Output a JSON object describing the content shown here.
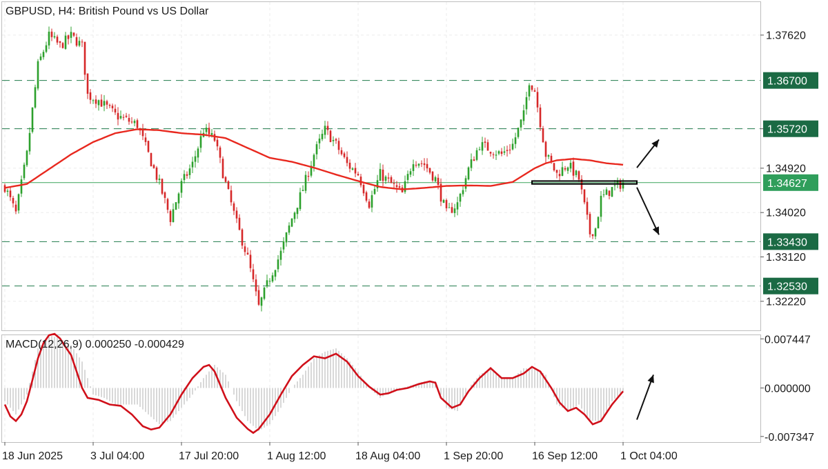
{
  "chart_data": [
    {
      "type": "candlestick",
      "title": "GBPUSD, H4:  British Pound vs US Dollar",
      "ylim": [
        1.3163,
        1.3829
      ],
      "y_ticks": [
        "1.37620",
        "1.35720",
        "1.34920",
        "1.34020",
        "1.33120",
        "1.32220"
      ],
      "x_ticks": [
        "18 Jun 2025",
        "3 Jul 04:00",
        "17 Jul 20:00",
        "1 Aug 12:00",
        "18 Aug 04:00",
        "1 Sep 20:00",
        "16 Sep 12:00",
        "1 Oct 04:00"
      ],
      "x_tick_index": [
        0,
        32,
        64,
        96,
        128,
        160,
        192,
        224
      ],
      "candle_count": 225,
      "bull_color": "#2ca02c",
      "bear_color": "#d62728",
      "ma_color": "#e8281e",
      "close_path": [
        [
          0,
          1.3455
        ],
        [
          4,
          1.34
        ],
        [
          8,
          1.352
        ],
        [
          12,
          1.37
        ],
        [
          16,
          1.376
        ],
        [
          20,
          1.374
        ],
        [
          24,
          1.376
        ],
        [
          28,
          1.374
        ],
        [
          30,
          1.364
        ],
        [
          34,
          1.363
        ],
        [
          40,
          1.36
        ],
        [
          44,
          1.359
        ],
        [
          48,
          1.358
        ],
        [
          52,
          1.352
        ],
        [
          56,
          1.346
        ],
        [
          60,
          1.339
        ],
        [
          64,
          1.346
        ],
        [
          68,
          1.35
        ],
        [
          72,
          1.357
        ],
        [
          76,
          1.355
        ],
        [
          80,
          1.346
        ],
        [
          84,
          1.338
        ],
        [
          88,
          1.331
        ],
        [
          92,
          1.321
        ],
        [
          96,
          1.327
        ],
        [
          100,
          1.332
        ],
        [
          104,
          1.339
        ],
        [
          108,
          1.345
        ],
        [
          112,
          1.352
        ],
        [
          116,
          1.357
        ],
        [
          120,
          1.354
        ],
        [
          124,
          1.35
        ],
        [
          128,
          1.348
        ],
        [
          132,
          1.342
        ],
        [
          136,
          1.348
        ],
        [
          140,
          1.346
        ],
        [
          144,
          1.344
        ],
        [
          148,
          1.351
        ],
        [
          152,
          1.35
        ],
        [
          156,
          1.347
        ],
        [
          160,
          1.34
        ],
        [
          164,
          1.342
        ],
        [
          168,
          1.349
        ],
        [
          172,
          1.354
        ],
        [
          176,
          1.353
        ],
        [
          180,
          1.352
        ],
        [
          184,
          1.354
        ],
        [
          188,
          1.36
        ],
        [
          190,
          1.367
        ],
        [
          192,
          1.365
        ],
        [
          196,
          1.352
        ],
        [
          200,
          1.348
        ],
        [
          204,
          1.35
        ],
        [
          208,
          1.347
        ],
        [
          212,
          1.336
        ],
        [
          214,
          1.337
        ],
        [
          216,
          1.343
        ],
        [
          220,
          1.345
        ],
        [
          224,
          1.3463
        ]
      ],
      "ma_path": [
        [
          0,
          1.3452
        ],
        [
          8,
          1.346
        ],
        [
          16,
          1.349
        ],
        [
          24,
          1.352
        ],
        [
          32,
          1.3545
        ],
        [
          40,
          1.3563
        ],
        [
          48,
          1.3571
        ],
        [
          56,
          1.3569
        ],
        [
          64,
          1.3563
        ],
        [
          72,
          1.356
        ],
        [
          80,
          1.3553
        ],
        [
          88,
          1.3533
        ],
        [
          96,
          1.3513
        ],
        [
          104,
          1.3505
        ],
        [
          112,
          1.3493
        ],
        [
          120,
          1.3479
        ],
        [
          128,
          1.3466
        ],
        [
          136,
          1.3454
        ],
        [
          144,
          1.3449
        ],
        [
          152,
          1.3452
        ],
        [
          160,
          1.3456
        ],
        [
          168,
          1.3457
        ],
        [
          176,
          1.3456
        ],
        [
          184,
          1.3464
        ],
        [
          188,
          1.3478
        ],
        [
          192,
          1.3492
        ],
        [
          196,
          1.3502
        ],
        [
          200,
          1.3508
        ],
        [
          206,
          1.3511
        ],
        [
          212,
          1.3508
        ],
        [
          218,
          1.3502
        ],
        [
          224,
          1.3499
        ]
      ],
      "last_price": 1.34627,
      "horizontal_levels": [
        {
          "value": 1.367,
          "label": "1.36700",
          "style": "dashed",
          "color": "#1f7a4a"
        },
        {
          "value": 1.3572,
          "label": "1.35720",
          "style": "dashed",
          "color": "#1f7a4a"
        },
        {
          "value": 1.3343,
          "label": "1.33430",
          "style": "dashed",
          "color": "#1f7a4a"
        },
        {
          "value": 1.3253,
          "label": "1.32530",
          "style": "dashed",
          "color": "#1f7a4a"
        }
      ],
      "last_price_label": "1.34627",
      "label_bg_light": "#2f9e5b",
      "label_bg_dark": "#1b6a44",
      "annotations": {
        "zone": {
          "x_start": 191,
          "x_end": 229,
          "y_low": 1.346,
          "y_high": 1.3466
        },
        "arrow_up": {
          "from": [
            229,
            1.3493
          ],
          "to": [
            237,
            1.355
          ]
        },
        "arrow_down": {
          "from": [
            229,
            1.3453
          ],
          "to": [
            237,
            1.3357
          ]
        }
      }
    },
    {
      "type": "macd",
      "title": "MACD(12,26,9) 0.000250 -0.000429",
      "ylim": [
        -0.0082,
        0.008
      ],
      "y_ticks": [
        "0.007447",
        "0.000000",
        "-0.007347"
      ],
      "y_tick_values": [
        0.007447,
        0.0,
        -0.007347
      ],
      "histogram_color": "#b0b0b0",
      "signal_color": "#d0101a",
      "macd_path": [
        [
          0,
          -0.002
        ],
        [
          4,
          -0.004
        ],
        [
          8,
          -0.001
        ],
        [
          12,
          0.006
        ],
        [
          16,
          0.008
        ],
        [
          20,
          0.0075
        ],
        [
          24,
          0.0065
        ],
        [
          28,
          0.004
        ],
        [
          32,
          -0.001
        ],
        [
          36,
          -0.0015
        ],
        [
          40,
          -0.0025
        ],
        [
          44,
          -0.0025
        ],
        [
          48,
          -0.0025
        ],
        [
          52,
          -0.004
        ],
        [
          56,
          -0.0055
        ],
        [
          60,
          -0.005
        ],
        [
          64,
          -0.003
        ],
        [
          68,
          -0.001
        ],
        [
          72,
          0.0015
        ],
        [
          76,
          0.0035
        ],
        [
          80,
          0.002
        ],
        [
          84,
          -0.002
        ],
        [
          88,
          -0.005
        ],
        [
          92,
          -0.0065
        ],
        [
          96,
          -0.0055
        ],
        [
          100,
          -0.003
        ],
        [
          104,
          0.0
        ],
        [
          108,
          0.002
        ],
        [
          112,
          0.0045
        ],
        [
          116,
          0.0055
        ],
        [
          120,
          0.006
        ],
        [
          124,
          0.0045
        ],
        [
          128,
          0.0025
        ],
        [
          132,
          0.0
        ],
        [
          136,
          -0.0015
        ],
        [
          140,
          -0.0005
        ],
        [
          144,
          0.0
        ],
        [
          148,
          0.0005
        ],
        [
          152,
          0.001
        ],
        [
          156,
          0.001
        ],
        [
          160,
          -0.003
        ],
        [
          164,
          -0.0035
        ],
        [
          168,
          0.0
        ],
        [
          172,
          0.002
        ],
        [
          176,
          0.003
        ],
        [
          180,
          0.0015
        ],
        [
          184,
          0.0015
        ],
        [
          188,
          0.003
        ],
        [
          192,
          0.003
        ],
        [
          196,
          0.002
        ],
        [
          200,
          -0.0025
        ],
        [
          204,
          -0.0035
        ],
        [
          208,
          -0.0025
        ],
        [
          212,
          -0.005
        ],
        [
          216,
          -0.005
        ],
        [
          220,
          -0.002
        ],
        [
          224,
          -0.0005
        ]
      ],
      "signal_path": [
        [
          0,
          -0.0025
        ],
        [
          2,
          -0.0043
        ],
        [
          4,
          -0.005
        ],
        [
          6,
          -0.004
        ],
        [
          8,
          -0.002
        ],
        [
          10,
          0.0012
        ],
        [
          12,
          0.0045
        ],
        [
          14,
          0.0068
        ],
        [
          16,
          0.008
        ],
        [
          18,
          0.0082
        ],
        [
          20,
          0.0075
        ],
        [
          22,
          0.0062
        ],
        [
          24,
          0.005
        ],
        [
          26,
          0.0025
        ],
        [
          28,
          0.0
        ],
        [
          30,
          -0.0015
        ],
        [
          34,
          -0.0018
        ],
        [
          38,
          -0.0025
        ],
        [
          42,
          -0.0027
        ],
        [
          46,
          -0.004
        ],
        [
          50,
          -0.0058
        ],
        [
          53,
          -0.0063
        ],
        [
          56,
          -0.006
        ],
        [
          60,
          -0.004
        ],
        [
          64,
          -0.001
        ],
        [
          68,
          0.0015
        ],
        [
          72,
          0.0032
        ],
        [
          74,
          0.0035
        ],
        [
          76,
          0.0025
        ],
        [
          80,
          -0.0015
        ],
        [
          84,
          -0.0045
        ],
        [
          88,
          -0.0062
        ],
        [
          90,
          -0.0068
        ],
        [
          92,
          -0.0062
        ],
        [
          96,
          -0.004
        ],
        [
          100,
          -0.001
        ],
        [
          104,
          0.0018
        ],
        [
          108,
          0.0035
        ],
        [
          112,
          0.0048
        ],
        [
          116,
          0.0045
        ],
        [
          120,
          0.0052
        ],
        [
          124,
          0.004
        ],
        [
          128,
          0.0018
        ],
        [
          132,
          0.0002
        ],
        [
          136,
          -0.001
        ],
        [
          139,
          -0.0008
        ],
        [
          142,
          -0.0003
        ],
        [
          146,
          0.0
        ],
        [
          150,
          0.0006
        ],
        [
          154,
          0.001
        ],
        [
          156,
          0.0008
        ],
        [
          158,
          -0.0015
        ],
        [
          162,
          -0.003
        ],
        [
          165,
          -0.0025
        ],
        [
          168,
          -0.0005
        ],
        [
          172,
          0.0015
        ],
        [
          176,
          0.003
        ],
        [
          180,
          0.0015
        ],
        [
          184,
          0.0015
        ],
        [
          188,
          0.0022
        ],
        [
          191,
          0.0032
        ],
        [
          194,
          0.0025
        ],
        [
          198,
          0.0
        ],
        [
          201,
          -0.0022
        ],
        [
          204,
          -0.0035
        ],
        [
          207,
          -0.003
        ],
        [
          210,
          -0.004
        ],
        [
          213,
          -0.0055
        ],
        [
          216,
          -0.005
        ],
        [
          220,
          -0.0025
        ],
        [
          224,
          -0.0005
        ]
      ],
      "annotations": {
        "arrow_up": {
          "from": [
            229,
            -0.0048
          ],
          "to": [
            235,
            0.002
          ]
        }
      }
    }
  ]
}
